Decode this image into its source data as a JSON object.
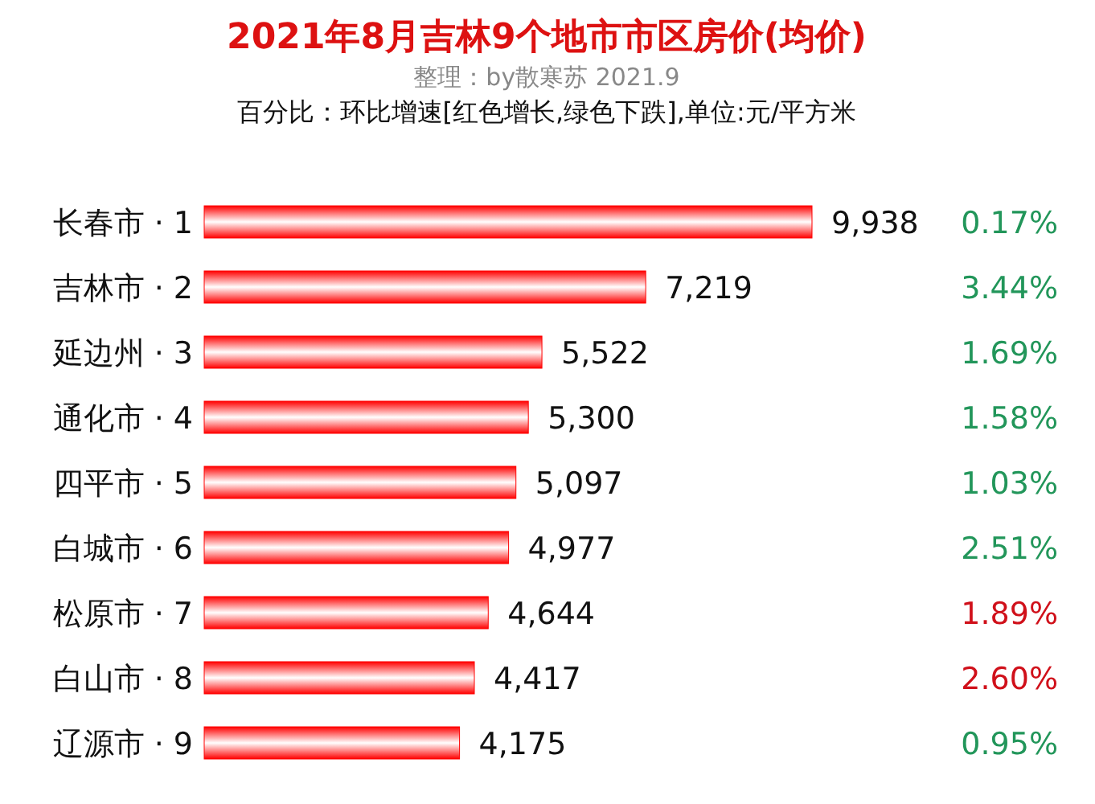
{
  "chart_data": [
    {
      "type": "bar",
      "orientation": "horizontal",
      "title": "2021年8月吉林9个地市市区房价(均价)",
      "subtitle": "百分比：环比增速[红色增长,绿色下跌],单位:元/平方米",
      "annotations": [
        "整理：by散寒苏 2021.9"
      ],
      "categories": [
        "长春市 · 1",
        "吉林市 · 2",
        "延边州 · 3",
        "通化市 · 4",
        "四平市 · 5",
        "白城市 · 6",
        "松原市 · 7",
        "白山市 · 8",
        "辽源市 · 9"
      ],
      "values": [
        9938,
        7219,
        5522,
        5300,
        5097,
        4977,
        4644,
        4417,
        4175
      ],
      "value_labels": [
        "9,938",
        "7,219",
        "5,522",
        "5,300",
        "5,097",
        "4,977",
        "4,644",
        "4,417",
        "4,175"
      ],
      "color": "#ff0000"
    },
    {
      "type": "other",
      "annotations": [
        "0.17%",
        "3.44%",
        "1.69%",
        "1.58%",
        "1.03%",
        "2.51%",
        "1.89%",
        "2.60%",
        "0.95%"
      ],
      "colors": [
        "#22965a",
        "#22965a",
        "#22965a",
        "#22965a",
        "#22965a",
        "#22965a",
        "#d0101a",
        "#d0101a",
        "#22965a"
      ]
    }
  ]
}
